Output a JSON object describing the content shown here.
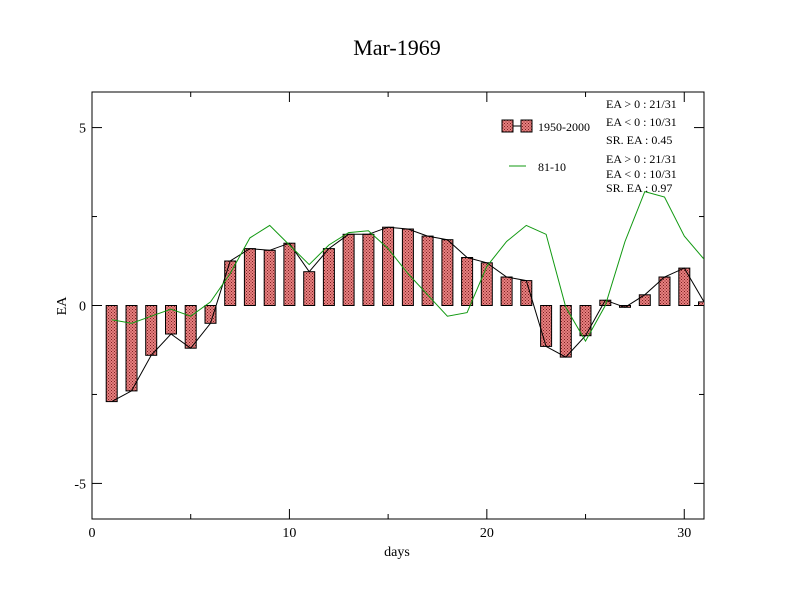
{
  "chart_data": {
    "type": "bar",
    "title": "Mar-1969",
    "xlabel": "days",
    "ylabel": "EA",
    "xlim": [
      0,
      31
    ],
    "ylim": [
      -6,
      6
    ],
    "xticks": [
      0,
      10,
      20,
      30
    ],
    "xtick_labels": [
      "0",
      "10",
      "20",
      "30"
    ],
    "yticks": [
      -5,
      0,
      5
    ],
    "ytick_labels": [
      "-5",
      "0",
      "5"
    ],
    "grid": false,
    "legend_position": "top-right",
    "x": [
      1,
      2,
      3,
      4,
      5,
      6,
      7,
      8,
      9,
      10,
      11,
      12,
      13,
      14,
      15,
      16,
      17,
      18,
      19,
      20,
      21,
      22,
      23,
      24,
      25,
      26,
      27,
      28,
      29,
      30,
      31
    ],
    "series": [
      {
        "name": "1950-2000",
        "kind": "bar+line",
        "bar_color": "#e07070",
        "line_color": "#000000",
        "values": [
          -2.7,
          -2.4,
          -1.4,
          -0.8,
          -1.2,
          -0.5,
          1.25,
          1.6,
          1.55,
          1.75,
          0.95,
          1.6,
          2.0,
          2.0,
          2.2,
          2.15,
          1.95,
          1.85,
          1.35,
          1.2,
          0.8,
          0.7,
          -1.15,
          -1.45,
          -0.85,
          0.15,
          -0.05,
          0.3,
          0.8,
          1.05,
          0.1
        ],
        "stats": [
          "EA > 0 : 21/31",
          "EA < 0 : 10/31",
          "SR. EA :  0.45"
        ]
      },
      {
        "name": "81-10",
        "kind": "line",
        "line_color": "#119911",
        "values": [
          -0.4,
          -0.5,
          -0.3,
          -0.1,
          -0.3,
          0.1,
          0.9,
          1.9,
          2.25,
          1.7,
          1.15,
          1.7,
          2.05,
          2.1,
          1.6,
          0.9,
          0.3,
          -0.3,
          -0.2,
          1.1,
          1.8,
          2.25,
          2.0,
          -0.05,
          -1.0,
          0.0,
          1.8,
          3.2,
          3.05,
          1.95,
          1.3
        ],
        "stats": [
          "EA > 0 : 21/31",
          "EA < 0 : 10/31",
          "SR. EA :  0.97"
        ]
      }
    ]
  }
}
